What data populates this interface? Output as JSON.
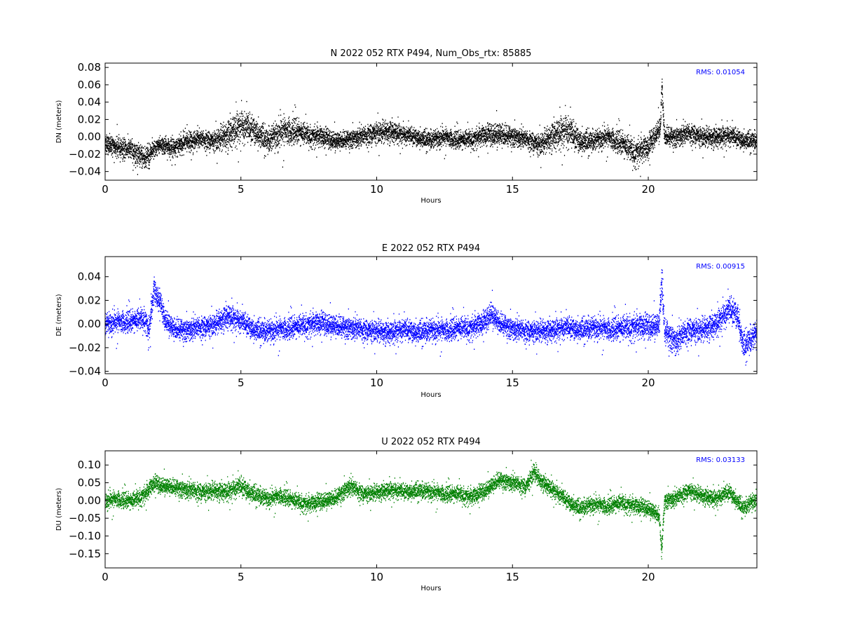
{
  "chart_data": [
    {
      "type": "scatter",
      "title": "N 2022 052 RTX  P494, Num_Obs_rtx: 85885",
      "xlabel": "Hours",
      "ylabel": "DN (meters)",
      "xlim": [
        0,
        24
      ],
      "ylim": [
        -0.05,
        0.085
      ],
      "x_ticks": [
        0,
        5,
        10,
        15,
        20
      ],
      "x_tick_labels": [
        "0",
        "5",
        "10",
        "15",
        "20"
      ],
      "y_ticks": [
        -0.04,
        -0.02,
        0.0,
        0.02,
        0.04,
        0.06,
        0.08
      ],
      "y_tick_labels": [
        "−0.04",
        "−0.02",
        "0.00",
        "0.02",
        "0.04",
        "0.06",
        "0.08"
      ],
      "annotation": "RMS:  0.01054",
      "color": "#000000",
      "annotation_color": "#0000ff",
      "grid": false,
      "series": [
        {
          "x": [
            0,
            0.5,
            1.0,
            1.5,
            2.0,
            2.5,
            3.0,
            3.5,
            4.0,
            4.5,
            5.0,
            5.5,
            6.0,
            6.5,
            7.0,
            7.5,
            8.0,
            8.5,
            9.0,
            9.5,
            10.0,
            10.5,
            11.0,
            11.5,
            12.0,
            12.5,
            13.0,
            13.5,
            14.0,
            14.5,
            15.0,
            15.5,
            16.0,
            16.5,
            17.0,
            17.5,
            18.0,
            18.5,
            19.0,
            19.5,
            20.0,
            20.3,
            20.45,
            20.5,
            20.6,
            21.0,
            21.5,
            22.0,
            22.5,
            23.0,
            23.5,
            24.0
          ],
          "y": [
            -0.008,
            -0.012,
            -0.015,
            -0.025,
            -0.008,
            -0.012,
            -0.005,
            -0.003,
            -0.004,
            0.003,
            0.012,
            0.008,
            -0.004,
            0.006,
            0.008,
            0.002,
            0.0,
            -0.004,
            -0.002,
            0.0,
            0.006,
            0.007,
            0.002,
            0.0,
            -0.003,
            0.0,
            -0.003,
            -0.002,
            0.002,
            0.004,
            0.001,
            -0.003,
            -0.008,
            0.002,
            0.007,
            -0.004,
            -0.004,
            0.0,
            -0.006,
            -0.018,
            -0.012,
            0.005,
            0.012,
            0.06,
            0.002,
            0.0,
            0.004,
            0.001,
            0.0,
            0.001,
            -0.003,
            -0.004
          ],
          "spread": [
            0.01,
            0.01,
            0.01,
            0.012,
            0.008,
            0.01,
            0.01,
            0.009,
            0.01,
            0.015,
            0.017,
            0.014,
            0.012,
            0.015,
            0.013,
            0.01,
            0.01,
            0.009,
            0.009,
            0.01,
            0.011,
            0.011,
            0.009,
            0.009,
            0.009,
            0.009,
            0.009,
            0.009,
            0.01,
            0.012,
            0.01,
            0.009,
            0.011,
            0.014,
            0.017,
            0.012,
            0.01,
            0.01,
            0.012,
            0.013,
            0.012,
            0.01,
            0.012,
            0.015,
            0.01,
            0.01,
            0.01,
            0.01,
            0.01,
            0.01,
            0.009,
            0.009
          ]
        }
      ]
    },
    {
      "type": "scatter",
      "title": "E 2022 052 RTX  P494",
      "xlabel": "Hours",
      "ylabel": "DE (meters)",
      "xlim": [
        0,
        24
      ],
      "ylim": [
        -0.042,
        0.057
      ],
      "x_ticks": [
        0,
        5,
        10,
        15,
        20
      ],
      "x_tick_labels": [
        "0",
        "5",
        "10",
        "15",
        "20"
      ],
      "y_ticks": [
        -0.04,
        -0.02,
        0.0,
        0.02,
        0.04
      ],
      "y_tick_labels": [
        "−0.04",
        "−0.02",
        "0.00",
        "0.02",
        "0.04"
      ],
      "annotation": "RMS:  0.00915",
      "color": "#0000ff",
      "annotation_color": "#0000ff",
      "grid": false,
      "series": [
        {
          "x": [
            0,
            0.5,
            1.0,
            1.5,
            1.6,
            1.8,
            2.0,
            2.2,
            2.5,
            3.0,
            3.5,
            4.0,
            4.5,
            5.0,
            5.5,
            6.0,
            6.5,
            7.0,
            7.5,
            8.0,
            8.5,
            9.0,
            9.5,
            10.0,
            10.5,
            11.0,
            11.5,
            12.0,
            12.5,
            13.0,
            13.5,
            14.0,
            14.2,
            14.5,
            15.0,
            15.5,
            16.0,
            16.5,
            17.0,
            17.5,
            18.0,
            18.5,
            19.0,
            19.5,
            20.0,
            20.4,
            20.5,
            20.6,
            21.0,
            21.5,
            22.0,
            22.5,
            23.0,
            23.3,
            23.5,
            24.0
          ],
          "y": [
            0.0,
            0.002,
            0.003,
            0.005,
            -0.008,
            0.028,
            0.02,
            0.005,
            -0.003,
            -0.005,
            -0.003,
            0.0,
            0.007,
            0.002,
            -0.004,
            -0.006,
            -0.004,
            -0.002,
            0.0,
            0.001,
            -0.001,
            -0.003,
            -0.005,
            -0.005,
            -0.007,
            -0.005,
            -0.006,
            -0.005,
            -0.005,
            -0.003,
            -0.003,
            0.002,
            0.01,
            0.002,
            -0.004,
            -0.006,
            -0.005,
            -0.005,
            -0.003,
            -0.004,
            -0.003,
            -0.004,
            -0.003,
            -0.002,
            -0.002,
            0.0,
            0.04,
            -0.005,
            -0.015,
            -0.005,
            -0.004,
            0.0,
            0.012,
            0.008,
            -0.018,
            -0.008
          ],
          "spread": [
            0.008,
            0.008,
            0.008,
            0.008,
            0.01,
            0.01,
            0.008,
            0.008,
            0.008,
            0.008,
            0.008,
            0.008,
            0.009,
            0.008,
            0.008,
            0.008,
            0.008,
            0.008,
            0.008,
            0.008,
            0.008,
            0.008,
            0.008,
            0.008,
            0.008,
            0.008,
            0.008,
            0.008,
            0.008,
            0.008,
            0.008,
            0.008,
            0.009,
            0.008,
            0.008,
            0.008,
            0.008,
            0.008,
            0.008,
            0.008,
            0.008,
            0.008,
            0.009,
            0.009,
            0.009,
            0.009,
            0.016,
            0.01,
            0.01,
            0.009,
            0.009,
            0.009,
            0.01,
            0.01,
            0.01,
            0.009
          ]
        }
      ]
    },
    {
      "type": "scatter",
      "title": "U 2022 052 RTX  P494",
      "xlabel": "Hours",
      "ylabel": "DU (meters)",
      "xlim": [
        0,
        24
      ],
      "ylim": [
        -0.19,
        0.14
      ],
      "x_ticks": [
        0,
        5,
        10,
        15,
        20
      ],
      "x_tick_labels": [
        "0",
        "5",
        "10",
        "15",
        "20"
      ],
      "y_ticks": [
        -0.15,
        -0.1,
        -0.05,
        0.0,
        0.05,
        0.1
      ],
      "y_tick_labels": [
        "−0.15",
        "−0.10",
        "−0.05",
        "0.00",
        "0.05",
        "0.10"
      ],
      "annotation": "RMS:  0.03133",
      "color": "#008000",
      "annotation_color": "#0000ff",
      "grid": false,
      "series": [
        {
          "x": [
            0,
            0.5,
            1.0,
            1.5,
            1.8,
            2.0,
            2.5,
            3.0,
            3.5,
            4.0,
            4.5,
            5.0,
            5.5,
            6.0,
            6.5,
            7.0,
            7.5,
            8.0,
            8.5,
            9.0,
            9.5,
            10.0,
            10.5,
            11.0,
            11.5,
            12.0,
            12.5,
            13.0,
            13.5,
            14.0,
            14.5,
            15.0,
            15.5,
            15.8,
            16.0,
            16.5,
            17.0,
            17.5,
            18.0,
            18.5,
            19.0,
            19.5,
            20.0,
            20.4,
            20.5,
            20.6,
            21.0,
            21.5,
            22.0,
            22.5,
            23.0,
            23.5,
            24.0
          ],
          "y": [
            0.0,
            0.005,
            0.0,
            0.02,
            0.05,
            0.045,
            0.04,
            0.03,
            0.025,
            0.03,
            0.025,
            0.04,
            0.02,
            0.005,
            0.015,
            0.0,
            -0.01,
            0.0,
            0.01,
            0.04,
            0.02,
            0.025,
            0.03,
            0.025,
            0.03,
            0.025,
            0.02,
            0.02,
            0.01,
            0.03,
            0.06,
            0.05,
            0.04,
            0.085,
            0.06,
            0.03,
            0.0,
            -0.02,
            -0.01,
            -0.015,
            -0.005,
            -0.015,
            -0.02,
            -0.04,
            -0.14,
            0.0,
            0.005,
            0.03,
            0.015,
            0.005,
            0.025,
            -0.02,
            0.005
          ],
          "spread": [
            0.02,
            0.02,
            0.02,
            0.02,
            0.02,
            0.02,
            0.02,
            0.022,
            0.022,
            0.022,
            0.022,
            0.025,
            0.022,
            0.02,
            0.02,
            0.02,
            0.02,
            0.02,
            0.02,
            0.022,
            0.02,
            0.02,
            0.02,
            0.02,
            0.02,
            0.02,
            0.02,
            0.02,
            0.02,
            0.02,
            0.02,
            0.02,
            0.02,
            0.025,
            0.02,
            0.02,
            0.02,
            0.02,
            0.02,
            0.02,
            0.02,
            0.02,
            0.02,
            0.02,
            0.03,
            0.02,
            0.02,
            0.02,
            0.02,
            0.02,
            0.02,
            0.02,
            0.02
          ]
        }
      ]
    }
  ]
}
